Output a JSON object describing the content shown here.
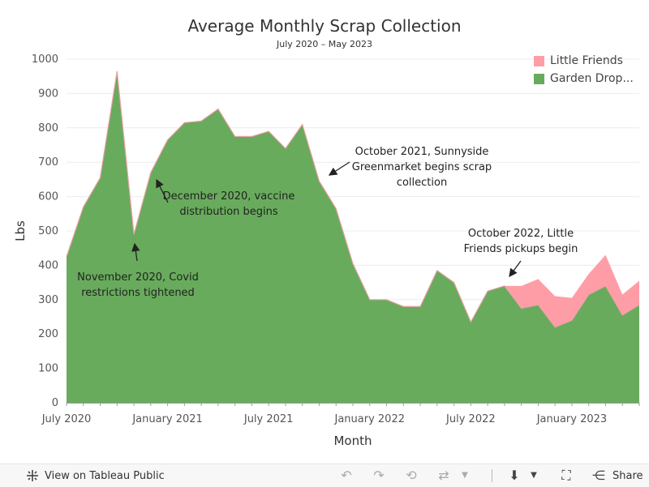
{
  "chart_data": {
    "type": "area",
    "stacked": true,
    "title": "Average Monthly Scrap Collection",
    "subtitle": "July 2020 – May 2023",
    "xlabel": "Month",
    "ylabel": "Lbs",
    "ylim": [
      0,
      1000
    ],
    "y_ticks": [
      0,
      100,
      200,
      300,
      400,
      500,
      600,
      700,
      800,
      900,
      1000
    ],
    "x_ticks": [
      {
        "label": "July 2020",
        "index": 0
      },
      {
        "label": "January 2021",
        "index": 6
      },
      {
        "label": "July 2021",
        "index": 12
      },
      {
        "label": "January 2022",
        "index": 18
      },
      {
        "label": "July 2022",
        "index": 24
      },
      {
        "label": "January 2023",
        "index": 30
      }
    ],
    "months": [
      "Jul 2020",
      "Aug 2020",
      "Sep 2020",
      "Oct 2020",
      "Nov 2020",
      "Dec 2020",
      "Jan 2021",
      "Feb 2021",
      "Mar 2021",
      "Apr 2021",
      "May 2021",
      "Jun 2021",
      "Jul 2021",
      "Aug 2021",
      "Sep 2021",
      "Oct 2021",
      "Nov 2021",
      "Dec 2021",
      "Jan 2022",
      "Feb 2022",
      "Mar 2022",
      "Apr 2022",
      "May 2022",
      "Jun 2022",
      "Jul 2022",
      "Aug 2022",
      "Sep 2022",
      "Oct 2022",
      "Nov 2022",
      "Dec 2022",
      "Jan 2023",
      "Feb 2023",
      "Mar 2023",
      "Apr 2023",
      "May 2023"
    ],
    "series": [
      {
        "name": "Garden Drop...",
        "color": "#68ab5c",
        "values": [
          425,
          570,
          655,
          965,
          490,
          670,
          765,
          815,
          820,
          855,
          775,
          775,
          790,
          740,
          810,
          645,
          565,
          405,
          300,
          300,
          280,
          280,
          385,
          350,
          235,
          325,
          340,
          275,
          285,
          220,
          240,
          315,
          340,
          255,
          285
        ]
      },
      {
        "name": "Little Friends",
        "color": "#ff9da7",
        "values": [
          0,
          0,
          0,
          0,
          0,
          0,
          0,
          0,
          0,
          0,
          0,
          0,
          0,
          0,
          0,
          0,
          0,
          0,
          0,
          0,
          0,
          0,
          0,
          0,
          0,
          0,
          0,
          65,
          75,
          90,
          65,
          60,
          90,
          60,
          70
        ]
      }
    ],
    "legend": [
      {
        "name": "Little Friends",
        "color": "#ff9da7"
      },
      {
        "name": "Garden Drop...",
        "color": "#68ab5c"
      }
    ],
    "legend_position": "top-right",
    "annotations": [
      {
        "lines": [
          "November 2020, Covid",
          "restrictions tightened"
        ],
        "target_index": 4
      },
      {
        "lines": [
          "December 2020, vaccine",
          "distribution begins"
        ],
        "target_index": 5
      },
      {
        "lines": [
          "October 2021, Sunnyside",
          "Greenmarket begins scrap",
          "collection"
        ],
        "target_index": 15
      },
      {
        "lines": [
          "October 2022, Little",
          "Friends pickups begin"
        ],
        "target_index": 27
      }
    ]
  },
  "toolbar": {
    "view_label": "View on Tableau Public",
    "share_label": "Share"
  }
}
